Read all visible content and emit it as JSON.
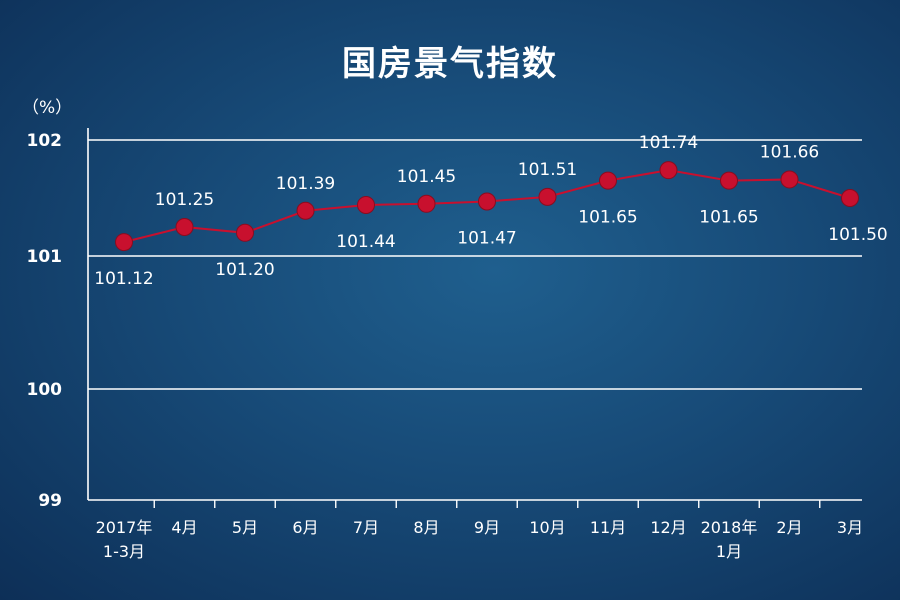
{
  "chart_data": {
    "type": "line",
    "title": "国房景气指数",
    "ylabel": "（%）",
    "ylim": [
      99,
      102
    ],
    "yticks": [
      "102",
      "101",
      "100",
      "99"
    ],
    "categories": [
      "2017年\n1-3月",
      "4月",
      "5月",
      "6月",
      "7月",
      "8月",
      "9月",
      "10月",
      "11月",
      "12月",
      "2018年\n1月",
      "2月",
      "3月"
    ],
    "series": [
      {
        "values": [
          101.12,
          101.25,
          101.2,
          101.39,
          101.44,
          101.45,
          101.47,
          101.51,
          101.65,
          101.74,
          101.65,
          101.66,
          101.5
        ],
        "labels": [
          "101.12",
          "101.25",
          "101.20",
          "101.39",
          "101.44",
          "101.45",
          "101.47",
          "101.51",
          "101.65",
          "101.74",
          "101.65",
          "101.66",
          "101.50"
        ],
        "label_position": [
          "below",
          "above",
          "below",
          "above",
          "below",
          "above",
          "below",
          "above",
          "below",
          "above",
          "below",
          "above",
          "below"
        ]
      }
    ],
    "grid": true,
    "colors": {
      "line": "#c8102e",
      "marker": "#c8102e",
      "grid": "#ffffff",
      "text": "#ffffff"
    }
  }
}
